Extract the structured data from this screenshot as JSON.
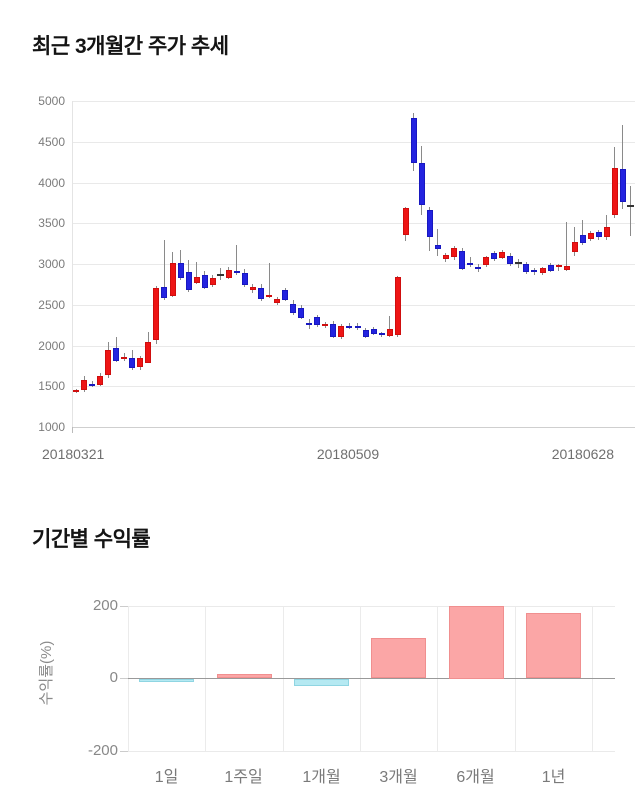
{
  "price_section": {
    "title": "최근 3개월간 주가 추세"
  },
  "returns_section": {
    "title": "기간별 수익률"
  },
  "chart_data": [
    {
      "type": "candlestick",
      "title": "최근 3개월간 주가 추세",
      "ylim": [
        1000,
        5000
      ],
      "yticks": [
        5000,
        4500,
        4000,
        3500,
        3000,
        2500,
        2000,
        1500,
        1000
      ],
      "xticks": [
        "20180321",
        "20180509",
        "20180628"
      ],
      "grid": "horizontal",
      "colors": {
        "up": "#ee1515",
        "up_border": "#cf0e0e",
        "down": "#2323e0",
        "down_border": "#1818c0",
        "doji": "#333333",
        "wick": "#8a8a8a"
      },
      "ohlc_note": "arrays are [open, high, low, close]; up days red, down days blue",
      "candles": [
        [
          1440,
          1465,
          1415,
          1450
        ],
        [
          1455,
          1625,
          1430,
          1580
        ],
        [
          1530,
          1560,
          1495,
          1515
        ],
        [
          1520,
          1665,
          1500,
          1620
        ],
        [
          1640,
          2045,
          1605,
          1950
        ],
        [
          1970,
          2105,
          1795,
          1810
        ],
        [
          1850,
          1905,
          1805,
          1865
        ],
        [
          1845,
          1945,
          1705,
          1725
        ],
        [
          1735,
          1870,
          1700,
          1845
        ],
        [
          1790,
          2165,
          1780,
          2040
        ],
        [
          2070,
          2730,
          2020,
          2700
        ],
        [
          2720,
          3290,
          2560,
          2580
        ],
        [
          2610,
          3150,
          2600,
          3010
        ],
        [
          3010,
          3175,
          2800,
          2830
        ],
        [
          2900,
          3055,
          2660,
          2680
        ],
        [
          2770,
          3030,
          2750,
          2840
        ],
        [
          2865,
          2920,
          2690,
          2705
        ],
        [
          2740,
          2860,
          2720,
          2830
        ],
        [
          2860,
          2955,
          2800,
          2860
        ],
        [
          2830,
          2960,
          2810,
          2925
        ],
        [
          2920,
          3235,
          2870,
          2910
        ],
        [
          2890,
          2940,
          2720,
          2740
        ],
        [
          2680,
          2760,
          2650,
          2720
        ],
        [
          2705,
          2760,
          2550,
          2576
        ],
        [
          2610,
          3010,
          2580,
          2615
        ],
        [
          2527,
          2600,
          2500,
          2576
        ],
        [
          2680,
          2700,
          2540,
          2560
        ],
        [
          2509,
          2560,
          2380,
          2400
        ],
        [
          2460,
          2500,
          2320,
          2338
        ],
        [
          2282,
          2320,
          2200,
          2272
        ],
        [
          2350,
          2380,
          2230,
          2252
        ],
        [
          2252,
          2290,
          2210,
          2260
        ],
        [
          2264,
          2300,
          2090,
          2104
        ],
        [
          2105,
          2260,
          2080,
          2240
        ],
        [
          2240,
          2270,
          2200,
          2226
        ],
        [
          2245,
          2270,
          2190,
          2236
        ],
        [
          2190,
          2220,
          2090,
          2105
        ],
        [
          2200,
          2230,
          2130,
          2140
        ],
        [
          2148,
          2170,
          2100,
          2136
        ],
        [
          2120,
          2360,
          2100,
          2200
        ],
        [
          2130,
          2850,
          2100,
          2840
        ],
        [
          3360,
          3700,
          3280,
          3690
        ],
        [
          4790,
          4855,
          4140,
          4240
        ],
        [
          4240,
          4450,
          3600,
          3730
        ],
        [
          3660,
          3700,
          3160,
          3330
        ],
        [
          3230,
          3430,
          3100,
          3180
        ],
        [
          3060,
          3140,
          3020,
          3110
        ],
        [
          3090,
          3220,
          3050,
          3195
        ],
        [
          3160,
          3200,
          2930,
          2940
        ],
        [
          3012,
          3080,
          2960,
          3000
        ],
        [
          2968,
          3000,
          2900,
          2952
        ],
        [
          2990,
          3100,
          2960,
          3086
        ],
        [
          3135,
          3160,
          3040,
          3060
        ],
        [
          3074,
          3170,
          3060,
          3147
        ],
        [
          3100,
          3130,
          2980,
          2997
        ],
        [
          3010,
          3065,
          2950,
          3010
        ],
        [
          2997,
          3030,
          2880,
          2900
        ],
        [
          2922,
          2950,
          2870,
          2906
        ],
        [
          2890,
          2960,
          2860,
          2950
        ],
        [
          2990,
          3010,
          2900,
          2915
        ],
        [
          2958,
          3000,
          2920,
          2986
        ],
        [
          2930,
          3510,
          2910,
          2980
        ],
        [
          3150,
          3460,
          3100,
          3270
        ],
        [
          3360,
          3540,
          3230,
          3260
        ],
        [
          3310,
          3400,
          3280,
          3380
        ],
        [
          3390,
          3420,
          3300,
          3330
        ],
        [
          3330,
          3600,
          3300,
          3460
        ],
        [
          3600,
          4440,
          3570,
          4180
        ],
        [
          4170,
          4700,
          3670,
          3760
        ],
        [
          3710,
          3960,
          3340,
          3710
        ]
      ]
    },
    {
      "type": "bar",
      "categories": [
        "1일",
        "1주일",
        "1개월",
        "3개월",
        "6개월",
        "1년"
      ],
      "values": [
        -10,
        11,
        -21,
        110,
        200,
        178
      ],
      "title": "기간별 수익률",
      "xlabel": "",
      "ylabel": "수익률(%)",
      "yticks": [
        200,
        0,
        -200
      ],
      "ylim": [
        -240,
        240
      ],
      "grid": "both",
      "legend": "none",
      "colors": {
        "positive": "#fba6a6",
        "positive_border": "#f08f8f",
        "negative": "#b5e9f2",
        "negative_border": "#8fd5e2"
      }
    }
  ]
}
